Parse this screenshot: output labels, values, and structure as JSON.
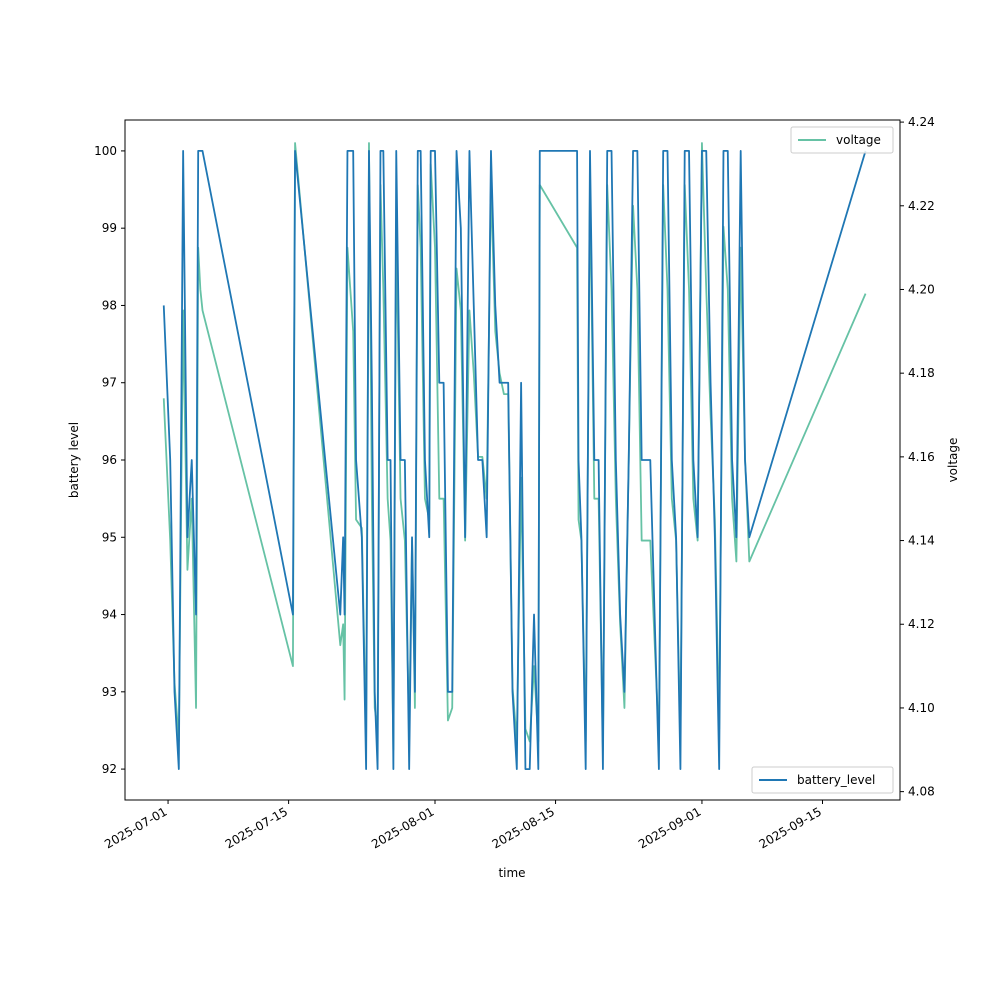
{
  "chart_data": {
    "type": "line",
    "title": "",
    "xlabel": "time",
    "ylabel": "battery level",
    "y2label": "voltage",
    "x_ticks": [
      "2025-07-01",
      "2025-07-15",
      "2025-08-01",
      "2025-08-15",
      "2025-09-01",
      "2025-09-15"
    ],
    "y_ticks": [
      92,
      93,
      94,
      95,
      96,
      97,
      98,
      99,
      100
    ],
    "y2_ticks": [
      "4.08",
      "4.10",
      "4.12",
      "4.14",
      "4.16",
      "4.18",
      "4.20",
      "4.22",
      "4.24"
    ],
    "xlim": [
      "2025-06-26",
      "2025-09-24"
    ],
    "ylim": [
      91.6,
      100.4
    ],
    "y2lim": [
      4.078,
      4.2405
    ],
    "grid": false,
    "series": [
      {
        "name": "battery_level",
        "axis": "left",
        "color": "#1f77b4",
        "legend_position": "lower right",
        "x": [
          "2025-06-30 12:00",
          "2025-07-01 06:00",
          "2025-07-01 18:00",
          "2025-07-02 06:00",
          "2025-07-02 18:00",
          "2025-07-03 06:00",
          "2025-07-03 18:00",
          "2025-07-04 06:00",
          "2025-07-04 12:00",
          "2025-07-04 18:00",
          "2025-07-05 00:00",
          "2025-07-15 12:00",
          "2025-07-15 18:00",
          "2025-07-21 00:00",
          "2025-07-21 08:00",
          "2025-07-21 12:00",
          "2025-07-21 20:00",
          "2025-07-22 12:00",
          "2025-07-22 20:00",
          "2025-07-23 12:00",
          "2025-07-24 00:00",
          "2025-07-24 08:00",
          "2025-07-24 16:00",
          "2025-07-25 00:00",
          "2025-07-25 08:00",
          "2025-07-25 16:00",
          "2025-07-26 00:00",
          "2025-07-26 12:00",
          "2025-07-26 20:00",
          "2025-07-27 04:00",
          "2025-07-27 12:00",
          "2025-07-28 00:00",
          "2025-07-28 12:00",
          "2025-07-29 00:00",
          "2025-07-29 08:00",
          "2025-07-29 16:00",
          "2025-07-30 00:00",
          "2025-07-30 08:00",
          "2025-07-30 20:00",
          "2025-07-31 08:00",
          "2025-07-31 12:00",
          "2025-08-01 00:00",
          "2025-08-01 12:00",
          "2025-08-02 00:00",
          "2025-08-02 12:00",
          "2025-08-03 00:00",
          "2025-08-03 12:00",
          "2025-08-04 00:00",
          "2025-08-04 12:00",
          "2025-08-05 00:00",
          "2025-08-05 12:00",
          "2025-08-06 00:00",
          "2025-08-06 12:00",
          "2025-08-07 00:00",
          "2025-08-07 12:00",
          "2025-08-08 00:00",
          "2025-08-08 12:00",
          "2025-08-09 00:00",
          "2025-08-09 12:00",
          "2025-08-10 00:00",
          "2025-08-10 12:00",
          "2025-08-11 00:00",
          "2025-08-11 12:00",
          "2025-08-12 00:00",
          "2025-08-12 12:00",
          "2025-08-13 00:00",
          "2025-08-13 04:00",
          "2025-08-17 12:00",
          "2025-08-17 16:00",
          "2025-08-18 00:00",
          "2025-08-18 12:00",
          "2025-08-19 00:00",
          "2025-08-19 12:00",
          "2025-08-20 00:00",
          "2025-08-20 12:00",
          "2025-08-21 00:00",
          "2025-08-21 12:00",
          "2025-08-22 00:00",
          "2025-08-22 12:00",
          "2025-08-23 00:00",
          "2025-08-23 12:00",
          "2025-08-24 00:00",
          "2025-08-24 12:00",
          "2025-08-25 00:00",
          "2025-08-26 00:00",
          "2025-08-27 00:00",
          "2025-08-27 12:00",
          "2025-08-28 00:00",
          "2025-08-28 12:00",
          "2025-08-29 00:00",
          "2025-08-29 12:00",
          "2025-08-30 00:00",
          "2025-08-30 12:00",
          "2025-08-31 00:00",
          "2025-08-31 12:00",
          "2025-09-01 00:00",
          "2025-09-01 12:00",
          "2025-09-02 00:00",
          "2025-09-02 12:00",
          "2025-09-03 00:00",
          "2025-09-03 12:00",
          "2025-09-04 00:00",
          "2025-09-04 12:00",
          "2025-09-05 00:00",
          "2025-09-05 12:00",
          "2025-09-06 00:00",
          "2025-09-06 12:00",
          "2025-09-20 00:00"
        ],
        "values": [
          98,
          96,
          93,
          92,
          100,
          95,
          96,
          94,
          100,
          100,
          100,
          94,
          100,
          94,
          95,
          94,
          100,
          100,
          96,
          95,
          92,
          100,
          97,
          93,
          92,
          100,
          100,
          96,
          96,
          92,
          100,
          96,
          96,
          92,
          95,
          93,
          100,
          100,
          96,
          95,
          100,
          100,
          97,
          97,
          93,
          93,
          100,
          99,
          95,
          100,
          98,
          96,
          96,
          95,
          100,
          98,
          97,
          97,
          97,
          93,
          92,
          97,
          92,
          92,
          94,
          92,
          100,
          100,
          96,
          95,
          92,
          100,
          96,
          96,
          92,
          100,
          100,
          96,
          94,
          93,
          96,
          100,
          100,
          96,
          96,
          92,
          100,
          100,
          96,
          95,
          92,
          100,
          100,
          96,
          95,
          100,
          100,
          97,
          95,
          92,
          100,
          100,
          96,
          95,
          100,
          96,
          95,
          100
        ]
      },
      {
        "name": "voltage",
        "axis": "right",
        "color": "#66c2a5",
        "legend_position": "upper right",
        "x": [
          "2025-06-30 12:00",
          "2025-07-01 06:00",
          "2025-07-01 18:00",
          "2025-07-02 06:00",
          "2025-07-02 18:00",
          "2025-07-03 06:00",
          "2025-07-03 18:00",
          "2025-07-04 06:00",
          "2025-07-04 12:00",
          "2025-07-04 18:00",
          "2025-07-05 00:00",
          "2025-07-15 12:00",
          "2025-07-15 18:00",
          "2025-07-21 00:00",
          "2025-07-21 08:00",
          "2025-07-21 12:00",
          "2025-07-21 20:00",
          "2025-07-22 12:00",
          "2025-07-22 20:00",
          "2025-07-23 12:00",
          "2025-07-24 00:00",
          "2025-07-24 08:00",
          "2025-07-24 16:00",
          "2025-07-25 00:00",
          "2025-07-25 08:00",
          "2025-07-25 16:00",
          "2025-07-26 00:00",
          "2025-07-26 12:00",
          "2025-07-26 20:00",
          "2025-07-27 04:00",
          "2025-07-27 12:00",
          "2025-07-28 00:00",
          "2025-07-28 12:00",
          "2025-07-29 00:00",
          "2025-07-29 08:00",
          "2025-07-29 16:00",
          "2025-07-30 00:00",
          "2025-07-30 08:00",
          "2025-07-30 20:00",
          "2025-07-31 08:00",
          "2025-07-31 12:00",
          "2025-08-01 00:00",
          "2025-08-01 12:00",
          "2025-08-02 00:00",
          "2025-08-02 12:00",
          "2025-08-03 00:00",
          "2025-08-03 12:00",
          "2025-08-04 00:00",
          "2025-08-04 12:00",
          "2025-08-05 00:00",
          "2025-08-05 12:00",
          "2025-08-06 00:00",
          "2025-08-06 12:00",
          "2025-08-07 00:00",
          "2025-08-07 12:00",
          "2025-08-08 00:00",
          "2025-08-08 12:00",
          "2025-08-09 00:00",
          "2025-08-09 12:00",
          "2025-08-10 00:00",
          "2025-08-10 12:00",
          "2025-08-11 00:00",
          "2025-08-11 12:00",
          "2025-08-12 00:00",
          "2025-08-12 12:00",
          "2025-08-13 00:00",
          "2025-08-13 04:00",
          "2025-08-17 12:00",
          "2025-08-17 16:00",
          "2025-08-18 00:00",
          "2025-08-18 12:00",
          "2025-08-19 00:00",
          "2025-08-19 12:00",
          "2025-08-20 00:00",
          "2025-08-20 12:00",
          "2025-08-21 00:00",
          "2025-08-21 12:00",
          "2025-08-22 00:00",
          "2025-08-22 12:00",
          "2025-08-23 00:00",
          "2025-08-23 12:00",
          "2025-08-24 00:00",
          "2025-08-24 12:00",
          "2025-08-25 00:00",
          "2025-08-26 00:00",
          "2025-08-27 00:00",
          "2025-08-27 12:00",
          "2025-08-28 00:00",
          "2025-08-28 12:00",
          "2025-08-29 00:00",
          "2025-08-29 12:00",
          "2025-08-30 00:00",
          "2025-08-30 12:00",
          "2025-08-31 00:00",
          "2025-08-31 12:00",
          "2025-09-01 00:00",
          "2025-09-01 12:00",
          "2025-09-02 00:00",
          "2025-09-02 12:00",
          "2025-09-03 00:00",
          "2025-09-03 12:00",
          "2025-09-04 00:00",
          "2025-09-04 12:00",
          "2025-09-05 00:00",
          "2025-09-05 12:00",
          "2025-09-06 00:00",
          "2025-09-06 12:00",
          "2025-09-20 00:00"
        ],
        "values": [
          4.174,
          4.14,
          4.106,
          4.092,
          4.195,
          4.133,
          4.15,
          4.1,
          4.21,
          4.2,
          4.195,
          4.11,
          4.235,
          4.115,
          4.12,
          4.102,
          4.21,
          4.19,
          4.145,
          4.143,
          4.092,
          4.235,
          4.15,
          4.1,
          4.095,
          4.225,
          4.2,
          4.15,
          4.14,
          4.09,
          4.215,
          4.15,
          4.14,
          4.095,
          4.14,
          4.1,
          4.225,
          4.21,
          4.15,
          4.145,
          4.23,
          4.21,
          4.15,
          4.15,
          4.097,
          4.1,
          4.205,
          4.195,
          4.14,
          4.195,
          4.18,
          4.16,
          4.16,
          4.15,
          4.225,
          4.19,
          4.18,
          4.175,
          4.175,
          4.105,
          4.092,
          4.155,
          4.095,
          4.092,
          4.11,
          4.092,
          4.225,
          4.21,
          4.145,
          4.14,
          4.092,
          4.225,
          4.15,
          4.15,
          4.09,
          4.225,
          4.2,
          4.15,
          4.12,
          4.1,
          4.16,
          4.22,
          4.2,
          4.14,
          4.14,
          4.092,
          4.225,
          4.2,
          4.15,
          4.14,
          4.092,
          4.225,
          4.2,
          4.15,
          4.14,
          4.235,
          4.2,
          4.17,
          4.145,
          4.095,
          4.215,
          4.2,
          4.15,
          4.135,
          4.21,
          4.16,
          4.135,
          4.199
        ]
      }
    ]
  }
}
